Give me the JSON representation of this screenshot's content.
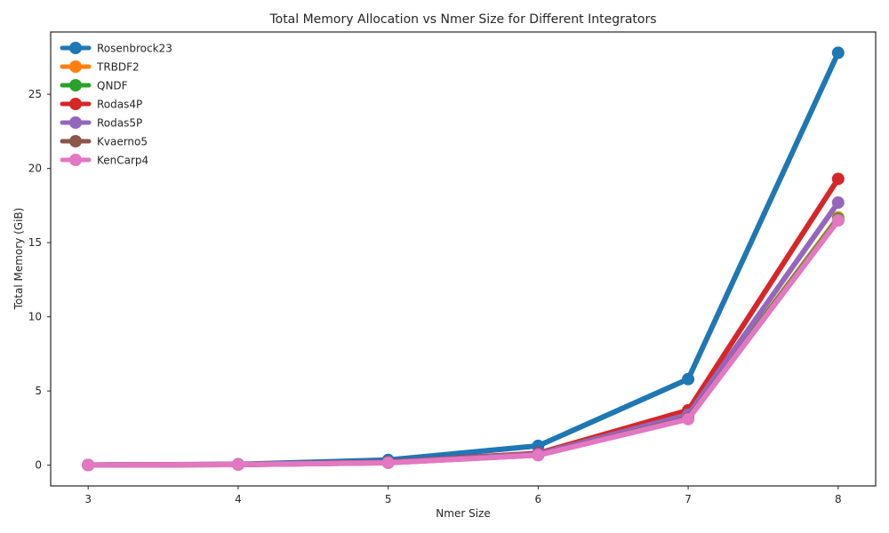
{
  "chart_data": {
    "type": "line",
    "title": "Total Memory Allocation vs Nmer Size for Different Integrators",
    "xlabel": "Nmer Size",
    "ylabel": "Total Memory (GiB)",
    "x": [
      3,
      4,
      5,
      6,
      7,
      8
    ],
    "xlim": [
      2.75,
      8.25
    ],
    "ylim": [
      -1.4,
      29.2
    ],
    "xticks": [
      "3",
      "4",
      "5",
      "6",
      "7",
      "8"
    ],
    "yticks": [
      "0",
      "5",
      "10",
      "15",
      "20",
      "25"
    ],
    "ytick_values": [
      0,
      5,
      10,
      15,
      20,
      25
    ],
    "grid": false,
    "legend_position": "top-left",
    "series": [
      {
        "name": "Rosenbrock23",
        "color": "#1f77b4",
        "values": [
          0.01,
          0.06,
          0.35,
          1.3,
          5.8,
          27.8
        ]
      },
      {
        "name": "TRBDF2",
        "color": "#ff7f0e",
        "values": [
          0.01,
          0.04,
          0.17,
          0.7,
          3.2,
          16.7
        ]
      },
      {
        "name": "QNDF",
        "color": "#2ca02c",
        "values": [
          0.01,
          0.04,
          0.17,
          0.7,
          3.2,
          16.6
        ]
      },
      {
        "name": "Rodas4P",
        "color": "#d62728",
        "values": [
          0.01,
          0.05,
          0.2,
          0.8,
          3.7,
          19.3
        ]
      },
      {
        "name": "Rodas5P",
        "color": "#9467bd",
        "values": [
          0.01,
          0.05,
          0.19,
          0.75,
          3.4,
          17.7
        ]
      },
      {
        "name": "Kvaerno5",
        "color": "#8c564b",
        "values": [
          0.01,
          0.04,
          0.17,
          0.68,
          3.15,
          16.5
        ]
      },
      {
        "name": "KenCarp4",
        "color": "#e377c2",
        "values": [
          0.01,
          0.04,
          0.16,
          0.67,
          3.1,
          16.5
        ]
      }
    ]
  }
}
